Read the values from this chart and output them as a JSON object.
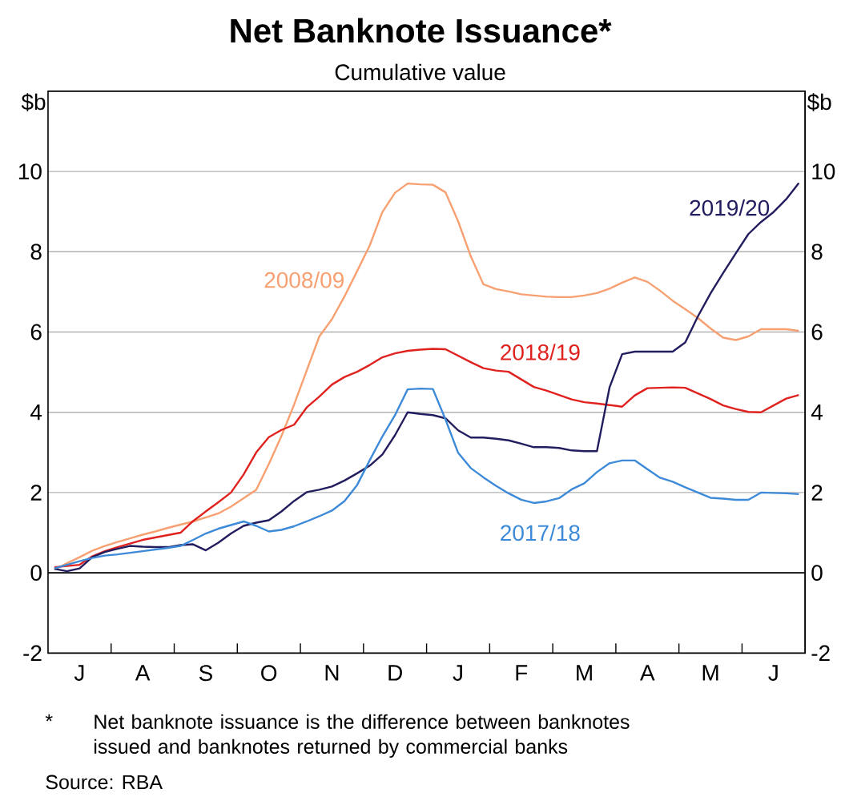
{
  "chart_data": {
    "type": "line",
    "title": "Net Banknote Issuance*",
    "subtitle": "Cumulative value",
    "ylabel": "$b",
    "y2label": "$b",
    "categories": [
      null,
      null,
      "J",
      null,
      null,
      null,
      null,
      "A",
      null,
      null,
      null,
      null,
      "S",
      null,
      null,
      null,
      null,
      "O",
      null,
      null,
      null,
      null,
      "N",
      null,
      null,
      null,
      null,
      "D",
      null,
      null,
      null,
      null,
      "J",
      null,
      null,
      null,
      null,
      "F",
      null,
      null,
      null,
      null,
      "M",
      null,
      null,
      null,
      null,
      "A",
      null,
      null,
      null,
      null,
      "M",
      null,
      null,
      null,
      null,
      "J",
      null,
      null
    ],
    "ylim": [
      -2,
      12
    ],
    "yticks": [
      -2,
      0,
      2,
      4,
      6,
      8,
      10
    ],
    "y2lim": [
      -2,
      12
    ],
    "y2ticks": [
      -2,
      0,
      2,
      4,
      6,
      8,
      10
    ],
    "grid": "y",
    "legend": false,
    "marker": "none",
    "line_style": "solid",
    "ref_lines": [
      {
        "axis": "y",
        "value": 0,
        "color": "#000000"
      }
    ],
    "series": [
      {
        "name": "2008/09",
        "color": "#f7a072",
        "values": [
          0.08,
          0.24,
          0.39,
          0.55,
          0.67,
          0.77,
          0.86,
          0.95,
          1.03,
          1.12,
          1.2,
          1.28,
          1.38,
          1.48,
          1.65,
          1.86,
          2.07,
          2.71,
          3.41,
          4.19,
          5.04,
          5.89,
          6.32,
          6.89,
          7.52,
          8.16,
          8.99,
          9.47,
          9.7,
          9.68,
          9.67,
          9.48,
          8.76,
          7.89,
          7.19,
          7.07,
          7.01,
          6.94,
          6.91,
          6.88,
          6.87,
          6.87,
          6.91,
          6.97,
          7.08,
          7.23,
          7.36,
          7.25,
          7.03,
          6.78,
          6.57,
          6.35,
          6.09,
          5.86,
          5.8,
          5.89,
          6.07,
          6.07,
          6.07,
          6.03
        ]
      },
      {
        "name": "2018/19",
        "color": "#e0221f",
        "values": [
          0.14,
          0.17,
          0.2,
          0.41,
          0.54,
          0.64,
          0.73,
          0.82,
          0.88,
          0.94,
          1.0,
          1.29,
          1.53,
          1.76,
          2.0,
          2.45,
          3.0,
          3.38,
          3.56,
          3.69,
          4.12,
          4.39,
          4.69,
          4.88,
          5.01,
          5.18,
          5.37,
          5.47,
          5.53,
          5.56,
          5.58,
          5.57,
          5.41,
          5.25,
          5.1,
          5.04,
          5.01,
          4.82,
          4.63,
          4.54,
          4.43,
          4.32,
          4.25,
          4.22,
          4.18,
          4.14,
          4.42,
          4.6,
          4.61,
          4.62,
          4.61,
          4.47,
          4.33,
          4.17,
          4.08,
          4.01,
          4.0,
          4.17,
          4.34,
          4.43
        ]
      },
      {
        "name": "2019/20",
        "color": "#221d5e",
        "values": [
          0.1,
          0.04,
          0.11,
          0.39,
          0.52,
          0.6,
          0.67,
          0.65,
          0.64,
          0.64,
          0.69,
          0.71,
          0.56,
          0.75,
          0.98,
          1.17,
          1.25,
          1.31,
          1.53,
          1.79,
          2.01,
          2.07,
          2.15,
          2.3,
          2.48,
          2.67,
          2.95,
          3.43,
          4.0,
          3.96,
          3.93,
          3.85,
          3.55,
          3.37,
          3.37,
          3.34,
          3.3,
          3.22,
          3.13,
          3.13,
          3.11,
          3.05,
          3.03,
          3.03,
          4.62,
          5.45,
          5.51,
          5.51,
          5.51,
          5.51,
          5.74,
          6.39,
          6.96,
          7.47,
          7.96,
          8.44,
          8.74,
          8.99,
          9.31,
          9.71
        ]
      },
      {
        "name": "2017/18",
        "color": "#3d8ad8",
        "values": [
          0.11,
          0.2,
          0.29,
          0.37,
          0.43,
          0.46,
          0.5,
          0.54,
          0.58,
          0.62,
          0.67,
          0.82,
          0.98,
          1.1,
          1.19,
          1.28,
          1.17,
          1.03,
          1.07,
          1.16,
          1.28,
          1.41,
          1.55,
          1.79,
          2.19,
          2.81,
          3.4,
          3.93,
          4.57,
          4.59,
          4.58,
          3.82,
          2.99,
          2.61,
          2.38,
          2.17,
          1.98,
          1.82,
          1.74,
          1.78,
          1.86,
          2.08,
          2.23,
          2.51,
          2.73,
          2.8,
          2.8,
          2.58,
          2.37,
          2.27,
          2.13,
          2.0,
          1.87,
          1.85,
          1.82,
          1.82,
          2.0,
          1.99,
          1.98,
          1.96
        ]
      }
    ],
    "annotations": [
      "*",
      "Net banknote issuance is the difference between banknotes issued and banknotes returned by commercial banks",
      "Source: RBA"
    ]
  }
}
